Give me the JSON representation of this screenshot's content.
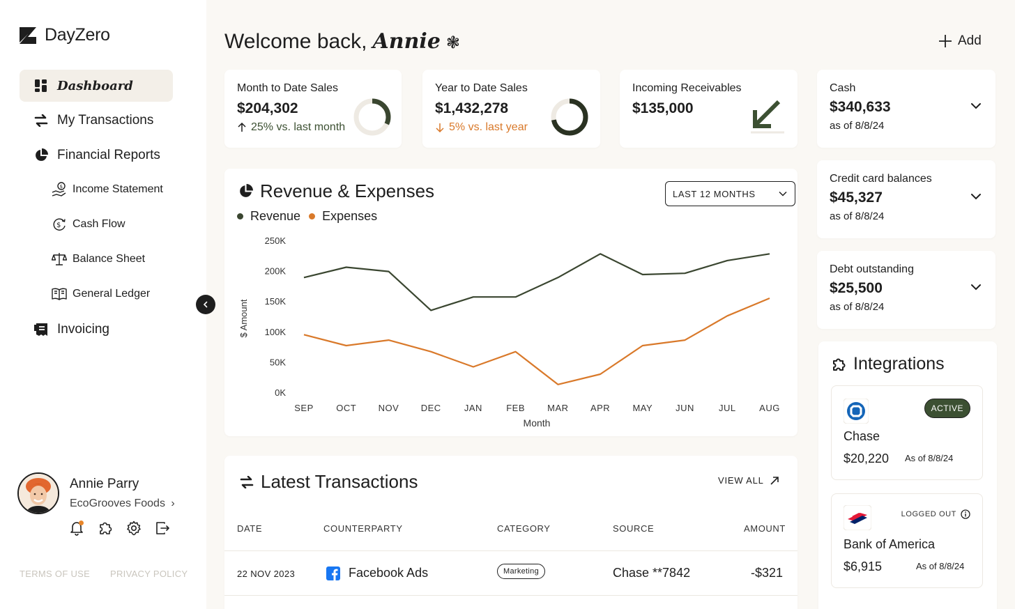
{
  "app": {
    "name": "DayZero"
  },
  "sidebar": {
    "nav": [
      {
        "label": "Dashboard",
        "icon": "dashboard-icon",
        "active": true
      },
      {
        "label": "My Transactions",
        "icon": "transfer-arrows-icon"
      },
      {
        "label": "Financial Reports",
        "icon": "pie-chart-icon"
      },
      {
        "label": "Invoicing",
        "icon": "receipt-icon"
      }
    ],
    "reports": [
      {
        "label": "Income Statement",
        "icon": "hand-coin-icon"
      },
      {
        "label": "Cash Flow",
        "icon": "cash-cycle-icon"
      },
      {
        "label": "Balance Sheet",
        "icon": "scale-icon"
      },
      {
        "label": "General Ledger",
        "icon": "book-icon"
      }
    ],
    "user": {
      "name": "Annie Parry",
      "company": "EcoGrooves Foods"
    },
    "terms": "TERMS OF USE",
    "privacy": "PRIVACY POLICY"
  },
  "header": {
    "greeting": "Welcome back,",
    "user_first": "Annie",
    "emoji": "❃",
    "add_label": "Add"
  },
  "kpis": [
    {
      "label": "Month to Date Sales",
      "value": "$204,302",
      "delta": "25% vs. last month",
      "trend": "up",
      "progress": 0.32
    },
    {
      "label": "Year to Date Sales",
      "value": "$1,432,278",
      "delta": "5% vs. last year",
      "trend": "down",
      "progress": 0.72
    },
    {
      "label": "Incoming Receivables",
      "value": "$135,000"
    }
  ],
  "accounts": [
    {
      "label": "Cash",
      "value": "$340,633",
      "date": "as of 8/8/24"
    },
    {
      "label": "Credit card balances",
      "value": "$45,327",
      "date": "as of 8/8/24"
    },
    {
      "label": "Debt outstanding",
      "value": "$25,500",
      "date": "as of 8/8/24"
    }
  ],
  "revenue_section": {
    "title": "Revenue & Expenses",
    "range": "LAST 12 MONTHS",
    "colors": {
      "revenue": "#3a4630",
      "expenses": "#d9792a"
    }
  },
  "chart_data": {
    "type": "line",
    "categories": [
      "SEP",
      "OCT",
      "NOV",
      "DEC",
      "JAN",
      "FEB",
      "MAR",
      "APR",
      "MAY",
      "JUN",
      "JUL",
      "AUG"
    ],
    "series": [
      {
        "name": "Revenue",
        "values": [
          190000,
          207000,
          200000,
          136000,
          158000,
          158000,
          190000,
          229000,
          195000,
          197000,
          218000,
          229000
        ]
      },
      {
        "name": "Expenses",
        "values": [
          96000,
          78000,
          87000,
          68000,
          43000,
          68000,
          14000,
          31000,
          78000,
          87000,
          127000,
          156000
        ]
      }
    ],
    "xlabel": "Month",
    "ylabel": "$ Amount",
    "yticks": [
      "0K",
      "50K",
      "100K",
      "150K",
      "200K",
      "250K"
    ],
    "ylim": [
      0,
      250000
    ],
    "legend": "top-left",
    "grid": false
  },
  "transactions": {
    "title": "Latest Transactions",
    "view_all": "VIEW ALL",
    "columns": [
      "DATE",
      "COUNTERPARTY",
      "CATEGORY",
      "SOURCE",
      "AMOUNT"
    ],
    "rows": [
      {
        "date": "22 NOV 2023",
        "counterparty": "Facebook Ads",
        "category": "Marketing",
        "source": "Chase **7842",
        "amount": "-$321"
      }
    ]
  },
  "integrations": {
    "title": "Integrations",
    "items": [
      {
        "name": "Chase",
        "amount": "$20,220",
        "as_of": "As of 8/8/24",
        "status": "ACTIVE"
      },
      {
        "name": "Bank of America",
        "amount": "$6,915",
        "as_of": "As of 8/8/24",
        "status": "LOGGED OUT"
      }
    ]
  }
}
